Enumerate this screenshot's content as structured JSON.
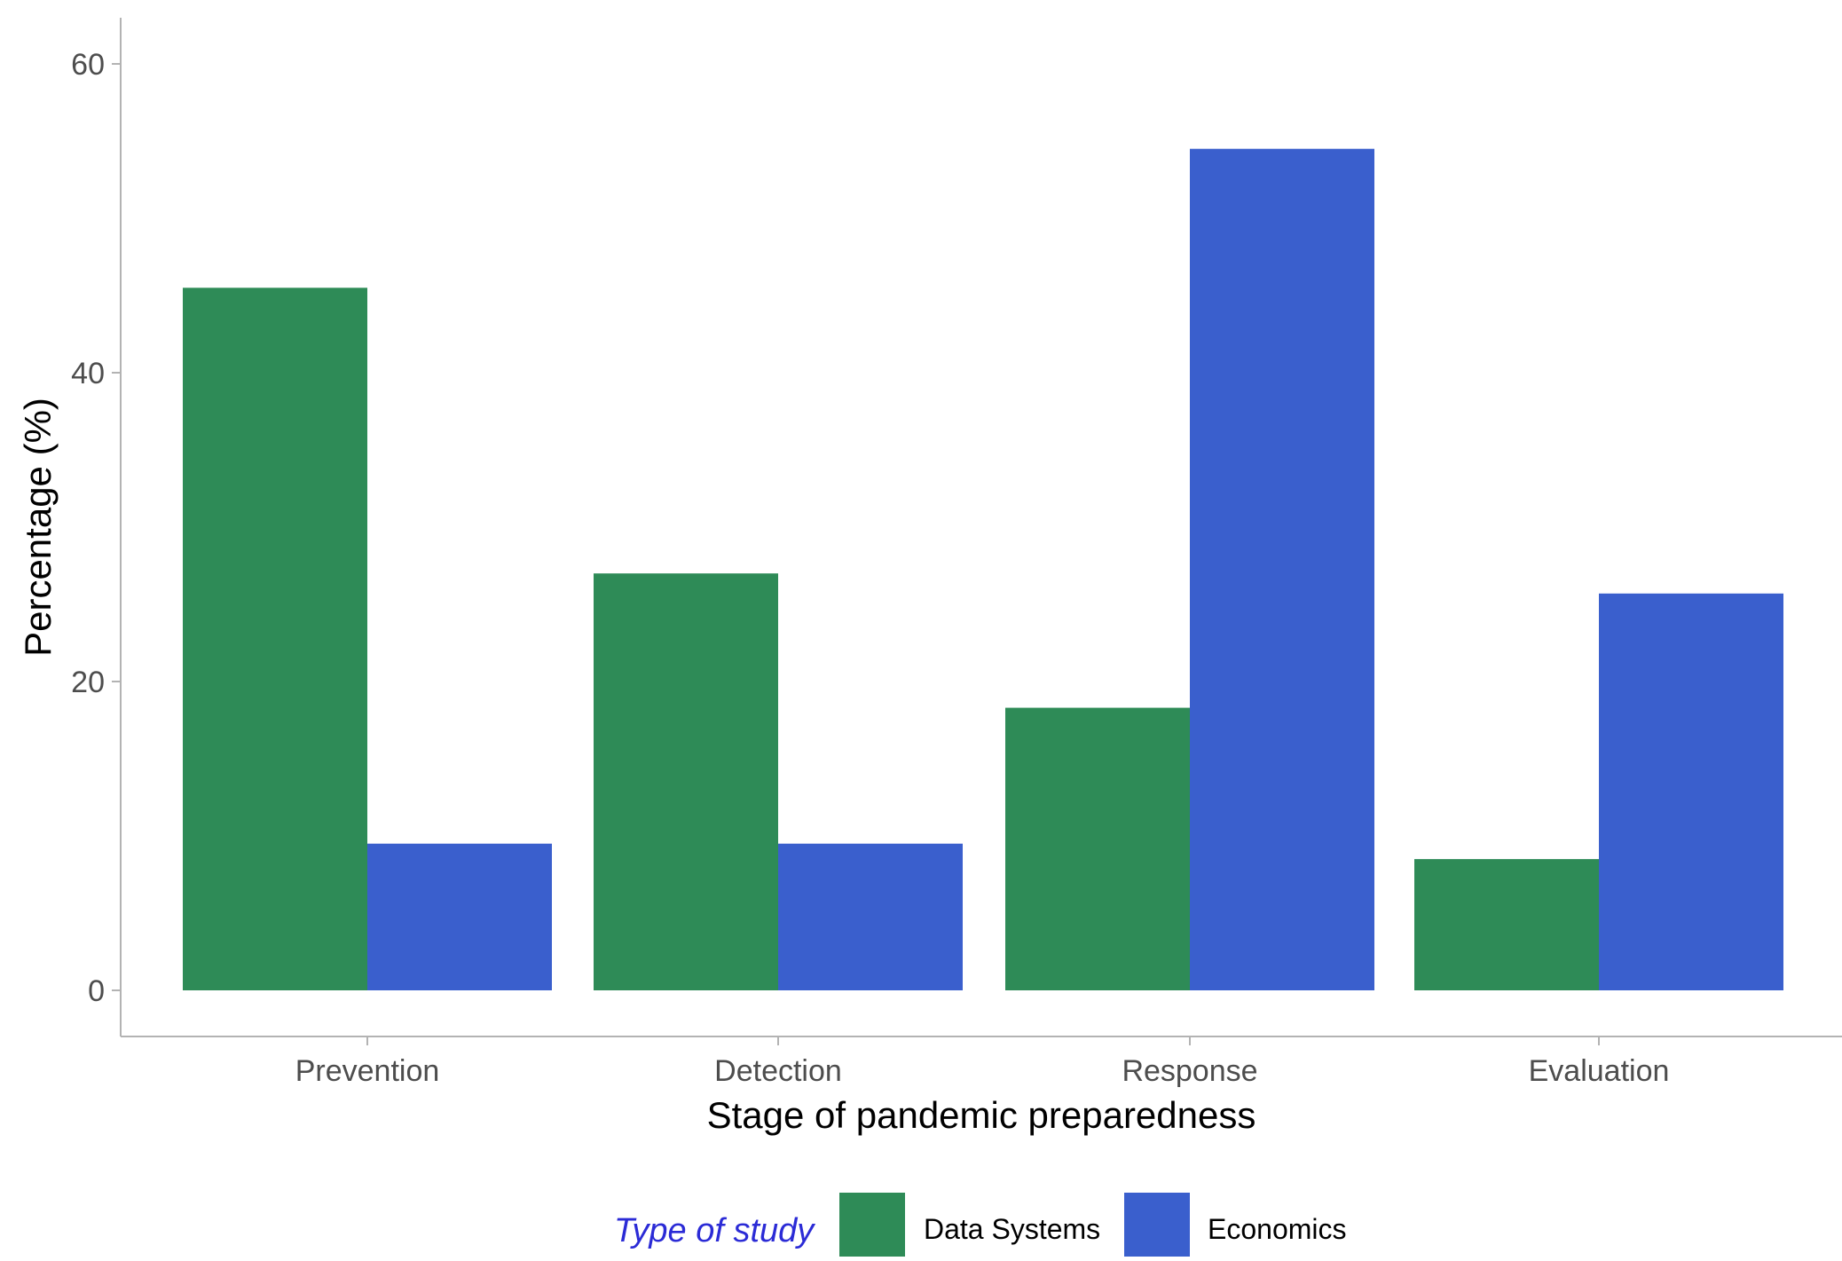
{
  "chart_data": {
    "type": "bar",
    "categories": [
      "Prevention",
      "Detection",
      "Response",
      "Evaluation"
    ],
    "series": [
      {
        "name": "Data Systems",
        "values": [
          45.5,
          27,
          18.3,
          8.5
        ],
        "color": "#2e8b57"
      },
      {
        "name": "Economics",
        "values": [
          9.5,
          9.5,
          54.5,
          25.7
        ],
        "color": "#3a5fcd"
      }
    ],
    "xlabel": "Stage of pandemic preparedness",
    "ylabel": "Percentage (%)",
    "ylim": [
      0,
      60
    ],
    "yticks": [
      0,
      20,
      40,
      60
    ],
    "grid": false,
    "legend": {
      "title": "Type of study",
      "title_color": "#2b2bd6",
      "position": "bottom"
    }
  }
}
